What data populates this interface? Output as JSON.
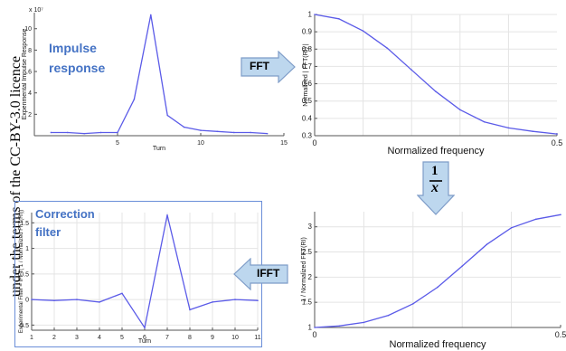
{
  "margin_text": "under the terms of the CC-BY-3.0 licence",
  "operations": {
    "fft": "FFT",
    "inverse_num": "1",
    "inverse_den": "x",
    "ifft": "IFFT"
  },
  "colors": {
    "line": "#5B5BE8",
    "title": "#4472C4",
    "arrow_fill": "#BDD7EE",
    "arrow_stroke": "#7E9CC8",
    "panel_border": "#6A8ED8"
  },
  "chart_data": [
    {
      "id": "impulse",
      "type": "line",
      "title": "Impulse response",
      "title_lines": [
        "Impulse",
        "response"
      ],
      "multiplier": "x 10⁷",
      "xlabel": "Turn",
      "ylabel": "Experimental Impulse Response",
      "xlim": [
        0,
        15
      ],
      "ylim": [
        0,
        11.5
      ],
      "xticks": [
        5,
        10,
        15
      ],
      "yticks": [
        2,
        4,
        6,
        8,
        10
      ],
      "grid": false,
      "x": [
        1,
        2,
        3,
        4,
        5,
        6,
        7,
        8,
        9,
        10,
        11,
        12,
        13,
        14
      ],
      "y": [
        0.3,
        0.3,
        0.2,
        0.3,
        0.3,
        3.4,
        11.3,
        1.9,
        0.8,
        0.5,
        0.4,
        0.3,
        0.3,
        0.2
      ]
    },
    {
      "id": "fft",
      "type": "line",
      "xlabel": "Normalized frequency",
      "ylabel": "Normalized | FFT(RI) |",
      "xlim": [
        0,
        0.5
      ],
      "ylim": [
        0.3,
        1.0
      ],
      "xticks": [
        0,
        0.5
      ],
      "xtick_labels": [
        "0",
        "0.5"
      ],
      "yticks": [
        0.3,
        0.4,
        0.5,
        0.6,
        0.7,
        0.8,
        0.9,
        1.0
      ],
      "ytick_labels": [
        "0.3",
        "0.4",
        "0.5",
        "0.6",
        "0.7",
        "0.8",
        "0.9",
        "1"
      ],
      "grid": true,
      "x": [
        0,
        0.05,
        0.1,
        0.15,
        0.2,
        0.25,
        0.3,
        0.35,
        0.4,
        0.45,
        0.5
      ],
      "y": [
        1.0,
        0.975,
        0.905,
        0.805,
        0.68,
        0.555,
        0.45,
        0.38,
        0.345,
        0.325,
        0.31
      ]
    },
    {
      "id": "inverse",
      "type": "line",
      "xlabel": "Normalized frequency",
      "ylabel": "1 / Normalized FFT(RI)",
      "xlim": [
        0,
        0.5
      ],
      "ylim": [
        1.0,
        3.3
      ],
      "xticks": [
        0,
        0.5
      ],
      "xtick_labels": [
        "0",
        "0.5"
      ],
      "yticks": [
        1,
        1.5,
        2,
        2.5,
        3
      ],
      "ytick_labels": [
        "1",
        "1.5",
        "2",
        "2.5",
        "3"
      ],
      "grid": true,
      "x": [
        0,
        0.05,
        0.1,
        0.15,
        0.2,
        0.25,
        0.3,
        0.35,
        0.4,
        0.45,
        0.5
      ],
      "y": [
        1.0,
        1.03,
        1.1,
        1.24,
        1.47,
        1.8,
        2.22,
        2.65,
        2.98,
        3.15,
        3.24
      ]
    },
    {
      "id": "correction",
      "type": "line",
      "title": "Correction filter",
      "title_lines": [
        "Correction",
        "filter"
      ],
      "xlabel": "Turn",
      "ylabel": "Experimental Filter = IFFT( 1 / Normalized FFT(RI))",
      "xlim": [
        1,
        11
      ],
      "ylim": [
        -0.6,
        1.7
      ],
      "xticks": [
        1,
        2,
        3,
        4,
        5,
        6,
        7,
        8,
        9,
        10,
        11
      ],
      "yticks": [
        -0.5,
        0,
        0.5,
        1,
        1.5
      ],
      "ytick_labels": [
        "-0.5",
        "0",
        "0.5",
        "1",
        "1.5"
      ],
      "grid": true,
      "x": [
        1,
        2,
        3,
        4,
        5,
        6,
        7,
        8,
        9,
        10,
        11
      ],
      "y": [
        0.0,
        -0.02,
        0.0,
        -0.05,
        0.12,
        -0.55,
        1.65,
        -0.2,
        -0.05,
        0.0,
        -0.02
      ]
    }
  ]
}
